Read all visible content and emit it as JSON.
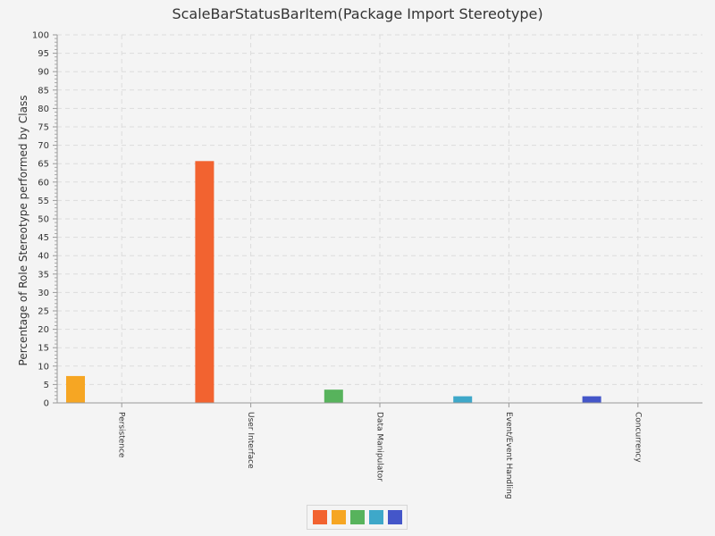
{
  "chart_data": {
    "type": "bar",
    "title": "ScaleBarStatusBarItem(Package Import Stereotype)",
    "xlabel": "",
    "ylabel": "Percentage of Role Stereotype performed by Class",
    "ylim": [
      0,
      100
    ],
    "ytick_step": 5,
    "grid": true,
    "legend": "bottom-center",
    "categories": [
      "Persistence",
      "User Interface",
      "Data Manipulator",
      "Event/Event Handling",
      "Concurrency"
    ],
    "series": [
      {
        "color": "#f26330",
        "values": [
          0,
          65.7,
          0,
          0,
          0
        ]
      },
      {
        "color": "#f6a623",
        "values": [
          7.3,
          0,
          0,
          0,
          0
        ]
      },
      {
        "color": "#57b35c",
        "values": [
          0,
          0,
          3.6,
          0,
          0
        ]
      },
      {
        "color": "#3ea8c9",
        "values": [
          0,
          0,
          0,
          1.8,
          0
        ]
      },
      {
        "color": "#4456c9",
        "values": [
          0,
          0,
          0,
          0,
          1.8
        ]
      }
    ]
  }
}
